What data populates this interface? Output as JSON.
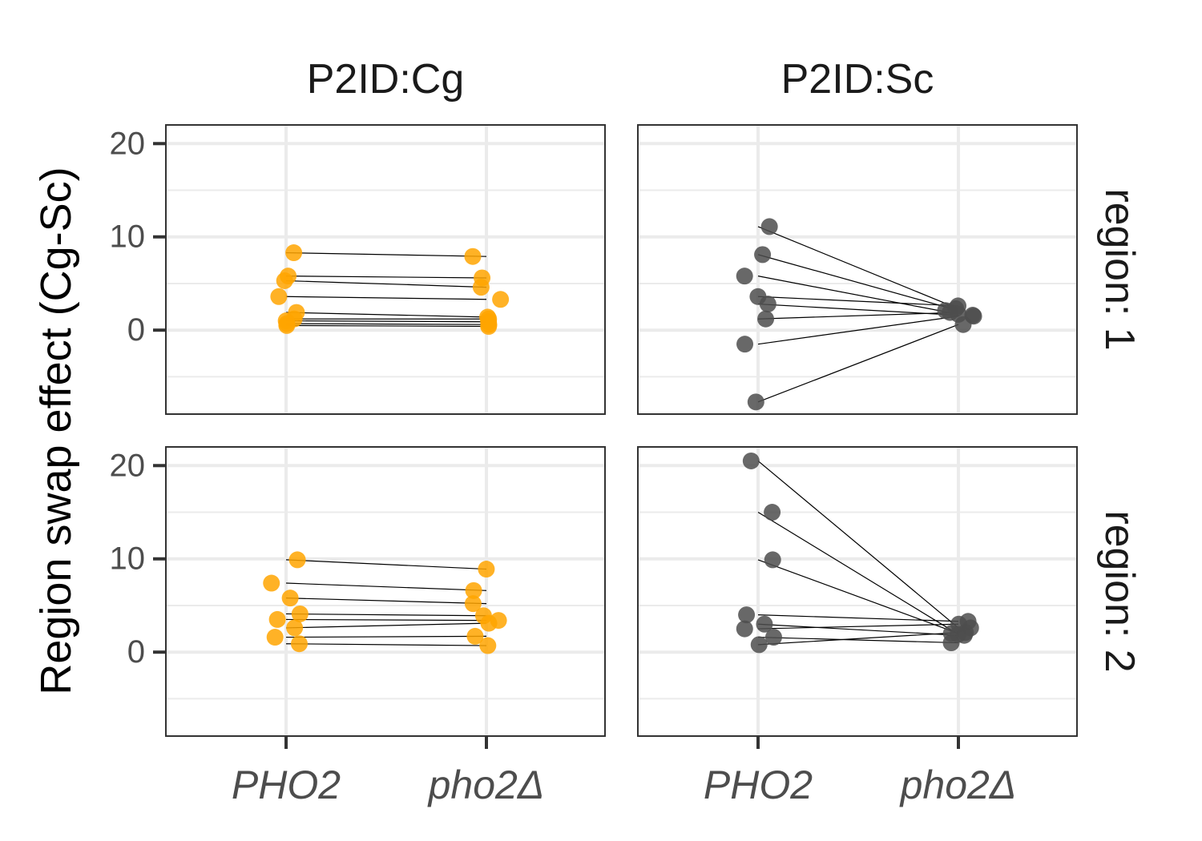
{
  "chart_data": {
    "type": "scatter",
    "ylabel": "Region swap effect (Cg-Sc)",
    "xlabel": "",
    "categories": [
      "PHO2",
      "pho2Δ"
    ],
    "yticks": [
      0,
      10,
      20
    ],
    "ylim": [
      -9,
      22
    ],
    "grid": true,
    "columns": [
      "P2ID:Cg",
      "P2ID:Sc"
    ],
    "rows": [
      "region: 1",
      "region: 2"
    ],
    "colors": {
      "P2ID:Cg": "#ffa500",
      "P2ID:Sc": "#4d4d4d"
    },
    "panels": [
      {
        "column": "P2ID:Cg",
        "row": "region: 1",
        "pairs": [
          {
            "PHO2": 8.3,
            "pho2Δ": 7.9
          },
          {
            "PHO2": 5.8,
            "pho2Δ": 5.6
          },
          {
            "PHO2": 5.3,
            "pho2Δ": 4.6
          },
          {
            "PHO2": 3.6,
            "pho2Δ": 3.3
          },
          {
            "PHO2": 1.9,
            "pho2Δ": 1.4
          },
          {
            "PHO2": 1.2,
            "pho2Δ": 1.2
          },
          {
            "PHO2": 1.0,
            "pho2Δ": 0.9
          },
          {
            "PHO2": 0.7,
            "pho2Δ": 0.6
          },
          {
            "PHO2": 0.5,
            "pho2Δ": 0.4
          }
        ]
      },
      {
        "column": "P2ID:Sc",
        "row": "region: 1",
        "pairs": [
          {
            "PHO2": 11.1,
            "pho2Δ": 2.3
          },
          {
            "PHO2": 8.1,
            "pho2Δ": 2.1
          },
          {
            "PHO2": 5.8,
            "pho2Δ": 1.7
          },
          {
            "PHO2": 3.6,
            "pho2Δ": 2.6
          },
          {
            "PHO2": 2.8,
            "pho2Δ": 1.6
          },
          {
            "PHO2": 1.2,
            "pho2Δ": 1.9
          },
          {
            "PHO2": -1.5,
            "pho2Δ": 1.5
          },
          {
            "PHO2": -7.7,
            "pho2Δ": 0.6
          }
        ]
      },
      {
        "column": "P2ID:Cg",
        "row": "region: 2",
        "pairs": [
          {
            "PHO2": 9.9,
            "pho2Δ": 8.9
          },
          {
            "PHO2": 7.4,
            "pho2Δ": 6.6
          },
          {
            "PHO2": 5.8,
            "pho2Δ": 5.2
          },
          {
            "PHO2": 4.1,
            "pho2Δ": 3.9
          },
          {
            "PHO2": 3.5,
            "pho2Δ": 3.4
          },
          {
            "PHO2": 2.6,
            "pho2Δ": 3.1
          },
          {
            "PHO2": 1.6,
            "pho2Δ": 1.7
          },
          {
            "PHO2": 0.9,
            "pho2Δ": 0.7
          }
        ]
      },
      {
        "column": "P2ID:Sc",
        "row": "region: 2",
        "pairs": [
          {
            "PHO2": 20.5,
            "pho2Δ": 2.6
          },
          {
            "PHO2": 15.0,
            "pho2Δ": 1.9
          },
          {
            "PHO2": 9.9,
            "pho2Δ": 2.0
          },
          {
            "PHO2": 4.0,
            "pho2Δ": 3.3
          },
          {
            "PHO2": 3.0,
            "pho2Δ": 1.8
          },
          {
            "PHO2": 2.5,
            "pho2Δ": 3.0
          },
          {
            "PHO2": 1.6,
            "pho2Δ": 1.0
          },
          {
            "PHO2": 0.8,
            "pho2Δ": 2.1
          }
        ]
      }
    ]
  }
}
